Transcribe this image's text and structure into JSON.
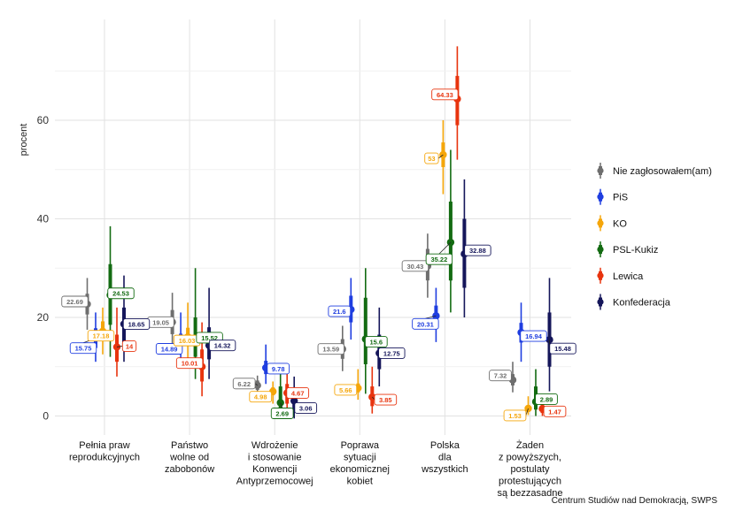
{
  "chart_data": {
    "type": "pointrange",
    "ylabel": "procent",
    "ylim": [
      -2,
      77
    ],
    "yticks": [
      0,
      20,
      40,
      60
    ],
    "grid": true,
    "legend_position": "right",
    "caption": "Centrum Studiów nad Demokracją, SWPS",
    "categories": [
      [
        "Pełnia praw",
        "reprodukcyjnych"
      ],
      [
        "Państwo",
        "wolne od",
        "zabobonów"
      ],
      [
        "Wdrożenie",
        "i stosowanie",
        "Konwencji",
        "Antyprzemocowej"
      ],
      [
        "Poprawa",
        "sytuacji",
        "ekonomicznej",
        "kobiet"
      ],
      [
        "Polska",
        "dla",
        "wszystkich"
      ],
      [
        "Żaden",
        "z powyższych,",
        "postulaty",
        "protestujących",
        "są bezzasadne"
      ]
    ],
    "series": [
      {
        "name": "Nie zagłosowałem(am)",
        "color": "#6e6e6e",
        "values": [
          22.69,
          19.05,
          6.22,
          13.59,
          30.43,
          7.32
        ],
        "labels": [
          "22.69",
          "19.05",
          "6.22",
          "13.59",
          "30.43",
          "7.32"
        ],
        "inner": [
          [
            20.6,
            24.8
          ],
          [
            16.6,
            21.5
          ],
          [
            5.3,
            7.2
          ],
          [
            11.6,
            15.6
          ],
          [
            27.5,
            33.9
          ],
          [
            6.2,
            8.5
          ]
        ],
        "outer": [
          [
            17.5,
            28.0
          ],
          [
            13.6,
            25.0
          ],
          [
            4.3,
            8.2
          ],
          [
            9.1,
            18.3
          ],
          [
            24.0,
            37.0
          ],
          [
            4.8,
            11.0
          ]
        ]
      },
      {
        "name": "PiS",
        "color": "#1f3ee0",
        "values": [
          15.75,
          14.89,
          9.78,
          21.6,
          20.31,
          16.94
        ],
        "labels": [
          "15.75",
          "14.89",
          "9.78",
          "21.6",
          "20.31",
          "16.94"
        ],
        "inner": [
          [
            13.8,
            17.8
          ],
          [
            13.1,
            16.7
          ],
          [
            8.5,
            11.2
          ],
          [
            19.0,
            24.4
          ],
          [
            18.4,
            22.4
          ],
          [
            14.9,
            18.9
          ]
        ],
        "outer": [
          [
            11.0,
            21.0
          ],
          [
            9.8,
            21.0
          ],
          [
            6.5,
            14.5
          ],
          [
            15.5,
            28.0
          ],
          [
            15.0,
            26.0
          ],
          [
            11.0,
            23.0
          ]
        ]
      },
      {
        "name": "KO",
        "color": "#f5a60a",
        "values": [
          17.18,
          16.03,
          4.98,
          5.66,
          53,
          1.53
        ],
        "labels": [
          "17.18",
          "16.03",
          "4.98",
          "5.66",
          "53",
          "1.53"
        ],
        "inner": [
          [
            15.2,
            19.2
          ],
          [
            14.2,
            17.9
          ],
          [
            4.2,
            5.8
          ],
          [
            4.8,
            6.6
          ],
          [
            50.5,
            55.5
          ],
          [
            1.0,
            2.1
          ]
        ],
        "outer": [
          [
            12.5,
            22.0
          ],
          [
            11.0,
            23.0
          ],
          [
            2.5,
            7.0
          ],
          [
            3.3,
            9.5
          ],
          [
            45.0,
            60.0
          ],
          [
            0.2,
            4.0
          ]
        ]
      },
      {
        "name": "PSL-Kukiz",
        "color": "#136b12",
        "values": [
          24.53,
          15.52,
          2.69,
          15.6,
          35.22,
          2.89
        ],
        "labels": [
          "24.53",
          "15.52",
          "2.69",
          "15.6",
          "35.22",
          "2.89"
        ],
        "inner": [
          [
            18.5,
            30.8
          ],
          [
            12.0,
            20.0
          ],
          [
            0.5,
            6.0
          ],
          [
            10.5,
            24.0
          ],
          [
            27.5,
            43.5
          ],
          [
            1.3,
            6.0
          ]
        ],
        "outer": [
          [
            12.0,
            38.5
          ],
          [
            7.5,
            30.0
          ],
          [
            -0.5,
            9.5
          ],
          [
            4.5,
            30.0
          ],
          [
            21.0,
            54.0
          ],
          [
            0.0,
            9.5
          ]
        ]
      },
      {
        "name": "Lewica",
        "color": "#e8340e",
        "values": [
          14,
          10.01,
          4.67,
          3.85,
          64.33,
          1.47
        ],
        "labels": [
          "14",
          "10.01",
          "4.67",
          "3.85",
          "64.33",
          "1.47"
        ],
        "inner": [
          [
            11.0,
            16.5
          ],
          [
            7.0,
            13.5
          ],
          [
            2.5,
            6.5
          ],
          [
            2.0,
            6.0
          ],
          [
            59.0,
            69.0
          ],
          [
            0.6,
            2.5
          ]
        ],
        "outer": [
          [
            8.0,
            22.0
          ],
          [
            4.0,
            19.0
          ],
          [
            0.5,
            9.5
          ],
          [
            0.5,
            10.0
          ],
          [
            52.0,
            75.0
          ],
          [
            0.0,
            4.5
          ]
        ]
      },
      {
        "name": "Konfederacja",
        "color": "#15165a",
        "values": [
          18.65,
          14.32,
          3.06,
          12.75,
          32.88,
          15.48
        ],
        "labels": [
          "18.65",
          "14.32",
          "3.06",
          "12.75",
          "32.88",
          "15.48"
        ],
        "inner": [
          [
            15.0,
            22.0
          ],
          [
            11.5,
            18.0
          ],
          [
            1.0,
            5.0
          ],
          [
            9.5,
            16.5
          ],
          [
            26.0,
            40.0
          ],
          [
            10.0,
            21.0
          ]
        ],
        "outer": [
          [
            11.0,
            28.5
          ],
          [
            7.5,
            26.0
          ],
          [
            -0.5,
            8.0
          ],
          [
            6.0,
            22.0
          ],
          [
            20.0,
            48.0
          ],
          [
            5.0,
            28.0
          ]
        ]
      }
    ]
  }
}
